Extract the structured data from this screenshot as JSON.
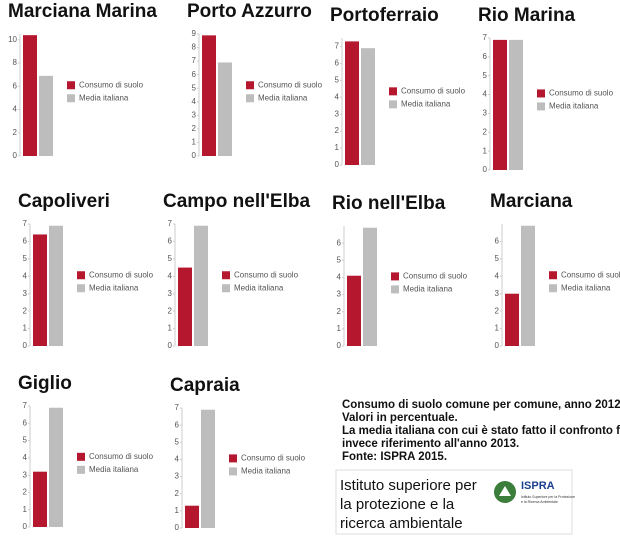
{
  "chart_data": [
    {
      "type": "bar",
      "title": "Marciana Marina",
      "ylim": [
        0,
        10.5
      ],
      "yticks": [
        0,
        2,
        4,
        6,
        8,
        10
      ],
      "series": [
        {
          "name": "Consumo di suolo",
          "color": "#b5172f",
          "values": [
            10.4
          ]
        },
        {
          "name": "Media italiana",
          "color": "#bdbdbd",
          "values": [
            6.9
          ]
        }
      ]
    },
    {
      "type": "bar",
      "title": "Porto Azzurro",
      "ylim": [
        0,
        9
      ],
      "yticks": [
        0,
        1,
        2,
        3,
        4,
        5,
        6,
        7,
        8,
        9
      ],
      "series": [
        {
          "name": "Consumo di suolo",
          "color": "#b5172f",
          "values": [
            8.9
          ]
        },
        {
          "name": "Media italiana",
          "color": "#bdbdbd",
          "values": [
            6.9
          ]
        }
      ]
    },
    {
      "type": "bar",
      "title": "Portoferraio",
      "ylim": [
        0,
        7.5
      ],
      "yticks": [
        0,
        1,
        2,
        3,
        4,
        5,
        6,
        7
      ],
      "series": [
        {
          "name": "Consumo di suolo",
          "color": "#b5172f",
          "values": [
            7.3
          ]
        },
        {
          "name": "Media italiana",
          "color": "#bdbdbd",
          "values": [
            6.9
          ]
        }
      ]
    },
    {
      "type": "bar",
      "title": "Rio Marina",
      "ylim": [
        0,
        7
      ],
      "yticks": [
        0,
        1,
        2,
        3,
        4,
        5,
        6,
        7
      ],
      "series": [
        {
          "name": "Consumo di suolo",
          "color": "#b5172f",
          "values": [
            6.9
          ]
        },
        {
          "name": "Media italiana",
          "color": "#bdbdbd",
          "values": [
            6.9
          ]
        }
      ]
    },
    {
      "type": "bar",
      "title": "Capoliveri",
      "ylim": [
        0,
        7
      ],
      "yticks": [
        0,
        1,
        2,
        3,
        4,
        5,
        6,
        7
      ],
      "series": [
        {
          "name": "Consumo di suolo",
          "color": "#b5172f",
          "values": [
            6.4
          ]
        },
        {
          "name": "Media italiana",
          "color": "#bdbdbd",
          "values": [
            6.9
          ]
        }
      ]
    },
    {
      "type": "bar",
      "title": "Campo nell'Elba",
      "ylim": [
        0,
        7
      ],
      "yticks": [
        0,
        1,
        2,
        3,
        4,
        5,
        6,
        7
      ],
      "series": [
        {
          "name": "Consumo di suolo",
          "color": "#b5172f",
          "values": [
            4.5
          ]
        },
        {
          "name": "Media italiana",
          "color": "#bdbdbd",
          "values": [
            6.9
          ]
        }
      ]
    },
    {
      "type": "bar",
      "title": "Rio nell'Elba",
      "ylim": [
        0,
        7
      ],
      "yticks": [
        0,
        1,
        2,
        3,
        4,
        5,
        6
      ],
      "series": [
        {
          "name": "Consumo di suolo",
          "color": "#b5172f",
          "values": [
            4.1
          ]
        },
        {
          "name": "Media italiana",
          "color": "#bdbdbd",
          "values": [
            6.9
          ]
        }
      ]
    },
    {
      "type": "bar",
      "title": "Marciana",
      "ylim": [
        0,
        7
      ],
      "yticks": [
        0,
        1,
        2,
        3,
        4,
        5,
        6
      ],
      "series": [
        {
          "name": "Consumo di suolo",
          "color": "#b5172f",
          "values": [
            3.0
          ]
        },
        {
          "name": "Media italiana",
          "color": "#bdbdbd",
          "values": [
            6.9
          ]
        }
      ]
    },
    {
      "type": "bar",
      "title": "Giglio",
      "ylim": [
        0,
        7
      ],
      "yticks": [
        0,
        1,
        2,
        3,
        4,
        5,
        6,
        7
      ],
      "series": [
        {
          "name": "Consumo di suolo",
          "color": "#b5172f",
          "values": [
            3.2
          ]
        },
        {
          "name": "Media italiana",
          "color": "#bdbdbd",
          "values": [
            6.9
          ]
        }
      ]
    },
    {
      "type": "bar",
      "title": "Capraia",
      "ylim": [
        0,
        7
      ],
      "yticks": [
        0,
        1,
        2,
        3,
        4,
        5,
        6,
        7
      ],
      "series": [
        {
          "name": "Consumo di suolo",
          "color": "#b5172f",
          "values": [
            1.3
          ]
        },
        {
          "name": "Media italiana",
          "color": "#bdbdbd",
          "values": [
            6.9
          ]
        }
      ]
    }
  ],
  "caption": [
    "Consumo di suolo comune per comune, anno 2012.",
    "Valori in percentuale.",
    "La media italiana con cui è stato fatto il confronto fa",
    "invece riferimento all'anno 2013.",
    "Fonte: ISPRA 2015."
  ],
  "logo": {
    "text": [
      "Istituto superiore per",
      "la protezione e la",
      "ricerca ambientale"
    ],
    "brand": "ISPRA",
    "brand_sub": [
      "Istituto Superiore per la Protezione",
      "e la Ricerca Ambientale"
    ]
  }
}
